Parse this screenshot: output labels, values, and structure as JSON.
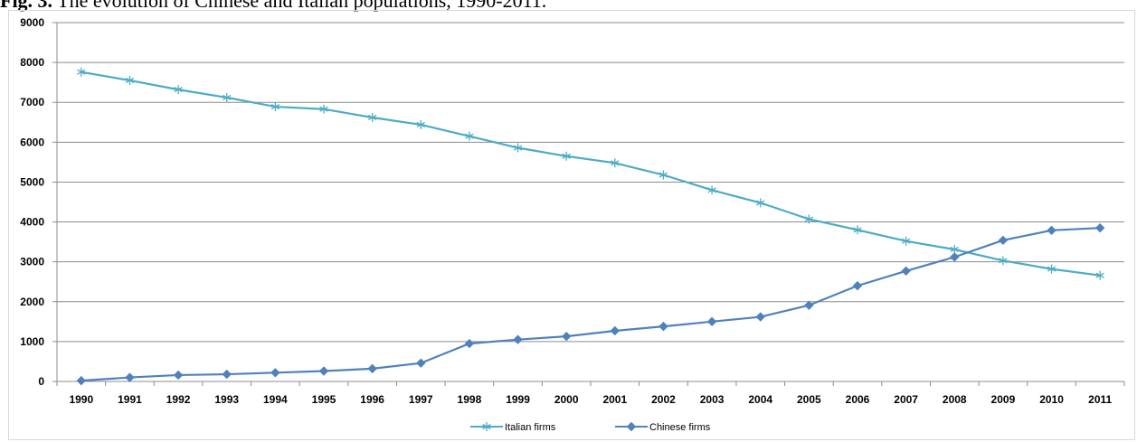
{
  "caption": {
    "label": "Fig. 3.",
    "text": " The evolution of Chinese and Italian populations, 1990-2011."
  },
  "chart_data": {
    "type": "line",
    "categories": [
      "1990",
      "1991",
      "1992",
      "1993",
      "1994",
      "1995",
      "1996",
      "1997",
      "1998",
      "1999",
      "2000",
      "2001",
      "2002",
      "2003",
      "2004",
      "2005",
      "2006",
      "2007",
      "2008",
      "2009",
      "2010",
      "2011"
    ],
    "ylim": [
      0,
      9000
    ],
    "yticks": [
      0,
      1000,
      2000,
      3000,
      4000,
      5000,
      6000,
      7000,
      8000,
      9000
    ],
    "grid": true,
    "legend_position": "bottom",
    "series": [
      {
        "name": "Italian firms",
        "color": "#4bacc6",
        "marker": "asterisk",
        "values": [
          7760,
          7550,
          7320,
          7120,
          6890,
          6830,
          6620,
          6440,
          6150,
          5860,
          5650,
          5480,
          5180,
          4800,
          4480,
          4070,
          3800,
          3520,
          3310,
          3030,
          2820,
          2660
        ]
      },
      {
        "name": "Chinese firms",
        "color": "#4f81bd",
        "marker": "diamond",
        "values": [
          20,
          100,
          160,
          180,
          220,
          260,
          320,
          460,
          950,
          1050,
          1130,
          1270,
          1380,
          1500,
          1620,
          1910,
          2400,
          2770,
          3120,
          3540,
          3790,
          3850
        ]
      }
    ]
  }
}
